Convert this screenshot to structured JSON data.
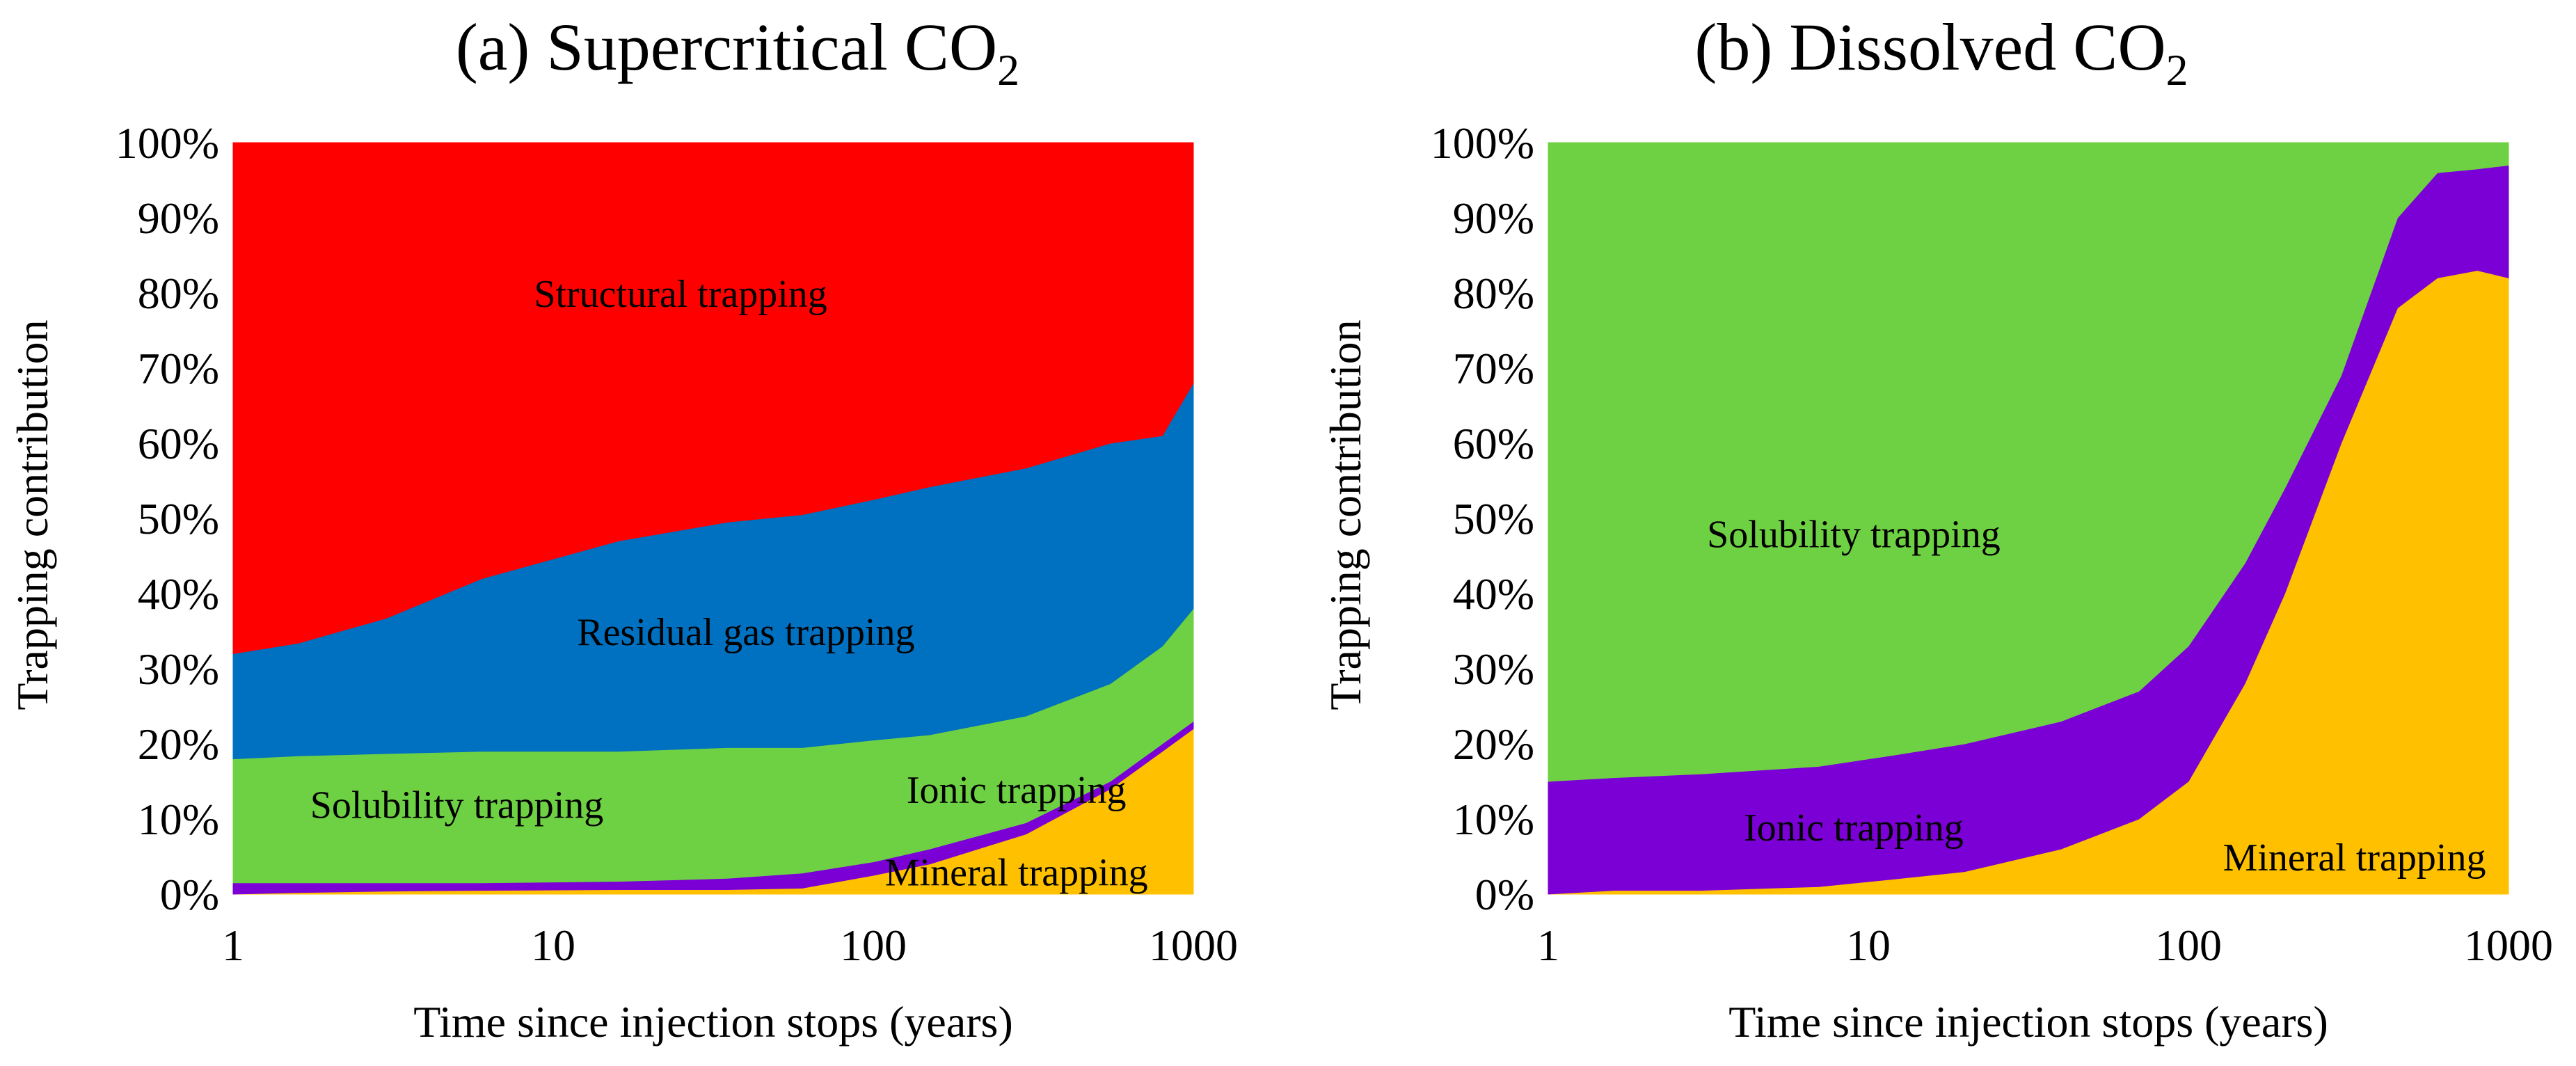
{
  "chart_data": [
    {
      "type": "area",
      "title_prefix": "(a) Supercritical CO",
      "title_sub": "2",
      "xlabel": "Time since injection stops (years)",
      "ylabel": "Trapping contribution",
      "x_scale": "log",
      "xlim": [
        1,
        1000
      ],
      "ylim": [
        0,
        100
      ],
      "x_ticks": [
        "1",
        "10",
        "100",
        "1000"
      ],
      "y_ticks": [
        "0%",
        "10%",
        "20%",
        "30%",
        "40%",
        "50%",
        "60%",
        "70%",
        "80%",
        "90%",
        "100%"
      ],
      "grid": false,
      "x": [
        1,
        1.6,
        3,
        6,
        16,
        35,
        60,
        100,
        150,
        300,
        550,
        800,
        1000
      ],
      "series": [
        {
          "name": "Mineral trapping",
          "color": "#FFC000",
          "values": [
            0,
            0.2,
            0.4,
            0.5,
            0.6,
            0.6,
            0.8,
            2.5,
            4,
            8,
            14,
            19,
            22
          ]
        },
        {
          "name": "Ionic trapping",
          "color": "#7B00D6",
          "values": [
            1.5,
            1.3,
            1.1,
            1.0,
            1.1,
            1.5,
            2.0,
            1.8,
            2.0,
            1.5,
            1.0,
            1.0,
            1.0
          ]
        },
        {
          "name": "Solubility trapping",
          "color": "#6ED143",
          "values": [
            16.5,
            16.9,
            17.2,
            17.5,
            17.3,
            17.4,
            16.7,
            16.2,
            15.2,
            14.2,
            13.0,
            13.0,
            15.0
          ]
        },
        {
          "name": "Residual gas trapping",
          "color": "#0070C0",
          "values": [
            14,
            15,
            18,
            23,
            28,
            30,
            31,
            32,
            33,
            33,
            32,
            28,
            30
          ]
        },
        {
          "name": "Structural trapping",
          "color": "#FF0000",
          "values": [
            68,
            66.6,
            63.3,
            58,
            53,
            50.5,
            49.5,
            47.5,
            45.8,
            43.3,
            40,
            39,
            32
          ]
        }
      ],
      "annotations": [
        {
          "text": "Structural trapping",
          "x": 25,
          "y": 80
        },
        {
          "text": "Residual gas trapping",
          "x": 40,
          "y": 35
        },
        {
          "text": "Solubility trapping",
          "x": 5,
          "y": 12
        },
        {
          "text": "Ionic trapping",
          "x": 280,
          "y": 14
        },
        {
          "text": "Mineral trapping",
          "x": 280,
          "y": 3
        }
      ]
    },
    {
      "type": "area",
      "title_prefix": "(b) Dissolved CO",
      "title_sub": "2",
      "xlabel": "Time since injection stops (years)",
      "ylabel": "Trapping contribution",
      "x_scale": "log",
      "xlim": [
        1,
        1000
      ],
      "ylim": [
        0,
        100
      ],
      "x_ticks": [
        "1",
        "10",
        "100",
        "1000"
      ],
      "y_ticks": [
        "0%",
        "10%",
        "20%",
        "30%",
        "40%",
        "50%",
        "60%",
        "70%",
        "80%",
        "90%",
        "100%"
      ],
      "grid": false,
      "x": [
        1,
        1.6,
        3,
        7,
        12,
        20,
        40,
        70,
        100,
        150,
        200,
        300,
        450,
        600,
        800,
        1000
      ],
      "series": [
        {
          "name": "Mineral trapping",
          "color": "#FFC000",
          "values": [
            0,
            0.5,
            0.5,
            1.0,
            2.0,
            3.0,
            6.0,
            10.0,
            15.0,
            28.0,
            40.0,
            60.0,
            78.0,
            82.0,
            83.0,
            82.0
          ]
        },
        {
          "name": "Ionic trapping",
          "color": "#7B00D6",
          "values": [
            15,
            15,
            15.5,
            16,
            16.5,
            17,
            17,
            17,
            18,
            16,
            14,
            9,
            12,
            14,
            13.5,
            15
          ]
        },
        {
          "name": "Solubility trapping",
          "color": "#6ED143",
          "values": [
            85,
            84.5,
            84,
            83,
            81.5,
            80,
            77,
            73,
            67,
            56,
            46,
            31,
            10,
            4,
            3.5,
            3
          ]
        }
      ],
      "annotations": [
        {
          "text": "Solubility trapping",
          "x": 9,
          "y": 48
        },
        {
          "text": "Ionic trapping",
          "x": 9,
          "y": 9
        },
        {
          "text": "Mineral trapping",
          "x": 330,
          "y": 5
        }
      ]
    }
  ]
}
